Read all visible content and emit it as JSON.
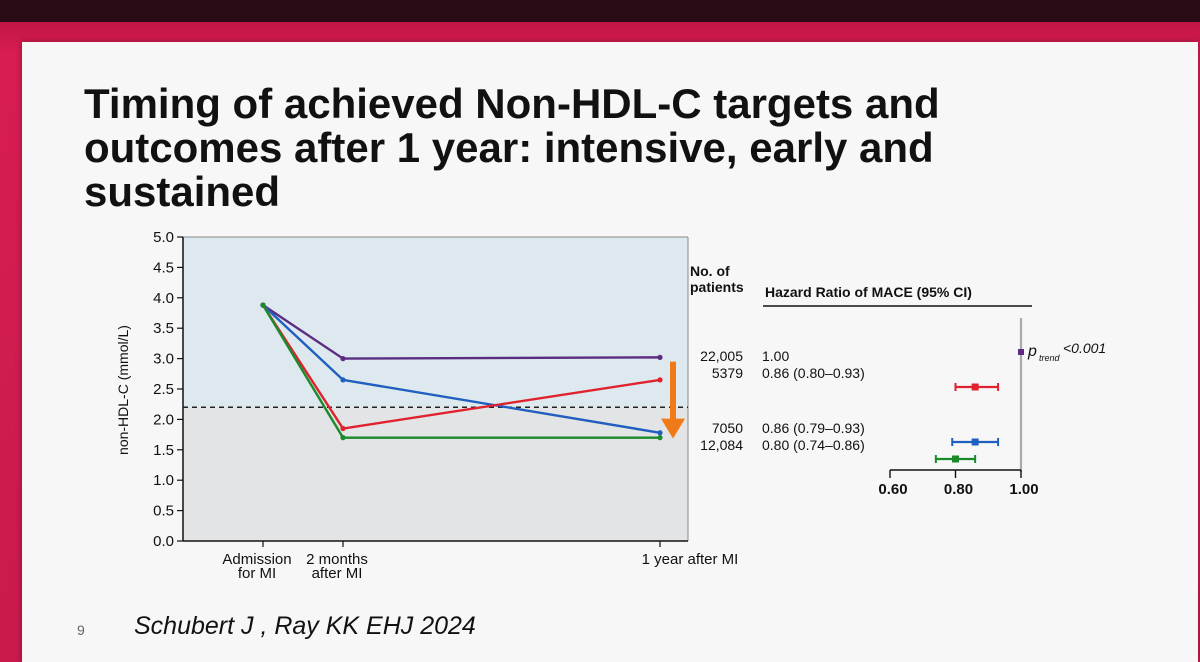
{
  "title_lines": [
    "Timing of achieved Non-HDL-C targets and",
    "outcomes after 1 year: intensive, early and",
    "sustained"
  ],
  "citation": "Schubert J , Ray KK EHJ 2024",
  "slide_number": "9",
  "colors": {
    "purple": "#5b2d82",
    "blue": "#1f5fbf",
    "red": "#e0222e",
    "green": "#1a8a2a",
    "arrow": "#f07a18"
  },
  "chart_data": [
    {
      "type": "line",
      "ylabel": "non-HDL-C (mmol/L)",
      "ylim": [
        0,
        5
      ],
      "yticks": [
        "0.0",
        "0.5",
        "1.0",
        "1.5",
        "2.0",
        "2.5",
        "3.0",
        "3.5",
        "4.0",
        "4.5",
        "5.0"
      ],
      "x_labels": [
        {
          "lines": [
            "Admission",
            "for MI"
          ],
          "x": 0
        },
        {
          "lines": [
            "2 months",
            "after MI"
          ],
          "x": 2
        },
        {
          "lines": [
            "1 year after MI"
          ],
          "x": 12
        }
      ],
      "x_months": [
        0,
        2,
        12
      ],
      "target_line": 2.2,
      "series": [
        {
          "color": "#5b2d82",
          "values": [
            3.88,
            3.0,
            3.02
          ]
        },
        {
          "color": "#1f5fbf",
          "values": [
            3.88,
            2.65,
            1.78
          ]
        },
        {
          "color": "#e0222e",
          "values": [
            3.88,
            1.85,
            2.65
          ]
        },
        {
          "color": "#1a8a2a",
          "values": [
            3.88,
            1.7,
            1.7
          ]
        }
      ],
      "arrow": {
        "x": 12,
        "from": 2.95,
        "to": 1.75
      }
    },
    {
      "type": "forest",
      "col_patients": [
        "No. of",
        "patients"
      ],
      "col_hr": "Hazard Ratio of MACE (95% CI)",
      "xlim": [
        0.6,
        1.0
      ],
      "xticks": [
        "0.60",
        "0.80",
        "1.00"
      ],
      "ptrend": {
        "p": "p",
        "sub": "trend",
        "rest": " <0.001"
      },
      "rows": [
        {
          "n": "22,005",
          "label": "1.00",
          "hr": 1.0,
          "lo": 1.0,
          "hi": 1.0,
          "color": "#5b2d82"
        },
        {
          "n": "5379",
          "label": "0.86 (0.80–0.93)",
          "hr": 0.86,
          "lo": 0.8,
          "hi": 0.93,
          "color": "#e0222e"
        },
        {
          "n": "7050",
          "label": "0.86 (0.79–0.93)",
          "hr": 0.86,
          "lo": 0.79,
          "hi": 0.93,
          "color": "#1f5fbf"
        },
        {
          "n": "12,084",
          "label": "0.80 (0.74–0.86)",
          "hr": 0.8,
          "lo": 0.74,
          "hi": 0.86,
          "color": "#1a8a2a"
        }
      ]
    }
  ]
}
